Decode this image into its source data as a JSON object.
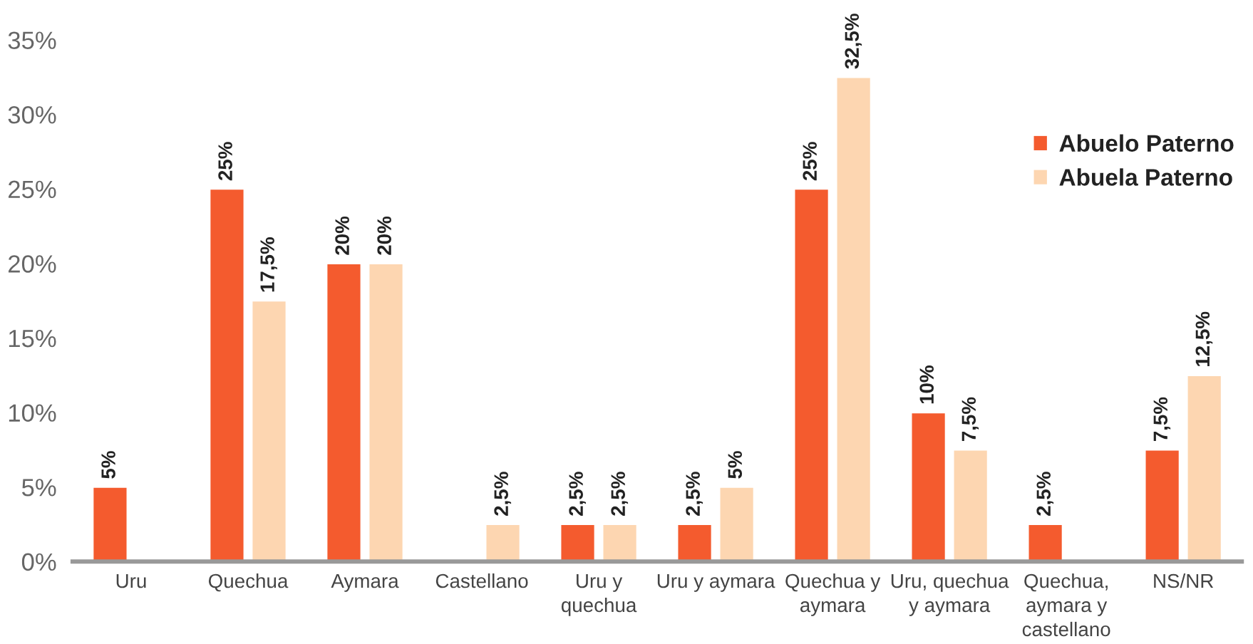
{
  "chart_data": {
    "type": "bar",
    "categories": [
      "Uru",
      "Quechua",
      "Aymara",
      "Castellano",
      "Uru y quechua",
      "Uru y aymara",
      "Quechua y aymara",
      "Uru, quechua y aymara",
      "Quechua, aymara y castellano",
      "NS/NR"
    ],
    "series": [
      {
        "name": "Abuelo Paterno",
        "color": "#f45b2e",
        "values": [
          5,
          25,
          20,
          null,
          2.5,
          2.5,
          25,
          10,
          2.5,
          7.5
        ],
        "value_labels": [
          "5%",
          "25%",
          "20%",
          null,
          "2,5%",
          "2,5%",
          "25%",
          "10%",
          "2,5%",
          "7,5%"
        ]
      },
      {
        "name": "Abuela Paterno",
        "color": "#fdd6b1",
        "values": [
          null,
          17.5,
          20,
          2.5,
          2.5,
          5,
          32.5,
          7.5,
          null,
          12.5
        ],
        "value_labels": [
          null,
          "17,5%",
          "20%",
          "2,5%",
          "2,5%",
          "5%",
          "32,5%",
          "7,5%",
          null,
          "12,5%"
        ]
      }
    ],
    "ylim": [
      0,
      35
    ],
    "yticks": [
      {
        "value": 0,
        "label": "0%"
      },
      {
        "value": 5,
        "label": "5%"
      },
      {
        "value": 10,
        "label": "10%"
      },
      {
        "value": 15,
        "label": "15%"
      },
      {
        "value": 20,
        "label": "20%"
      },
      {
        "value": 25,
        "label": "25%"
      },
      {
        "value": 30,
        "label": "30%"
      },
      {
        "value": 35,
        "label": "35%"
      }
    ],
    "grid": false,
    "legend": "top right"
  }
}
